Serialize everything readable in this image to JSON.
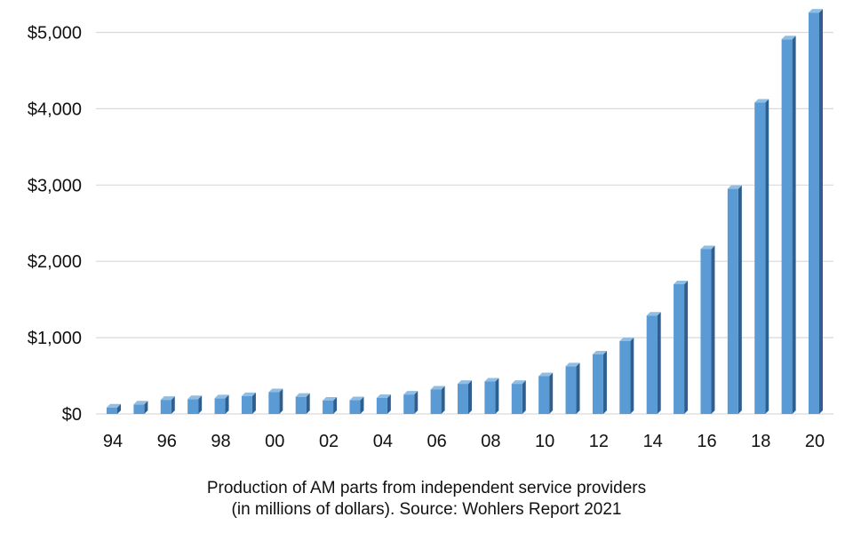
{
  "chart_data": {
    "type": "bar",
    "categories": [
      "94",
      "95",
      "96",
      "97",
      "98",
      "99",
      "00",
      "01",
      "02",
      "03",
      "04",
      "05",
      "06",
      "07",
      "08",
      "09",
      "10",
      "11",
      "12",
      "13",
      "14",
      "15",
      "16",
      "17",
      "18",
      "19",
      "20"
    ],
    "x_tick_labels": [
      "94",
      "96",
      "98",
      "00",
      "02",
      "04",
      "06",
      "08",
      "10",
      "12",
      "14",
      "16",
      "18",
      "20"
    ],
    "values": [
      85,
      125,
      185,
      195,
      205,
      235,
      285,
      225,
      175,
      180,
      210,
      255,
      320,
      395,
      425,
      395,
      495,
      625,
      780,
      955,
      1290,
      1700,
      2160,
      2950,
      4080,
      4910,
      5260
    ],
    "y_ticks": [
      0,
      1000,
      2000,
      3000,
      4000,
      5000
    ],
    "y_tick_labels": [
      "$0",
      "$1,000",
      "$2,000",
      "$3,000",
      "$4,000",
      "$5,000"
    ],
    "ylim": [
      0,
      5300
    ],
    "grid": true,
    "bar_color": "#5b9bd5",
    "bar_side_color": "#2e5f8f",
    "bar_top_color": "#8fbde3",
    "title": "",
    "xlabel": "",
    "ylabel": ""
  },
  "caption": {
    "line1": "Production of AM parts from independent service providers",
    "line2": "(in millions of dollars). Source: Wohlers Report 2021"
  }
}
